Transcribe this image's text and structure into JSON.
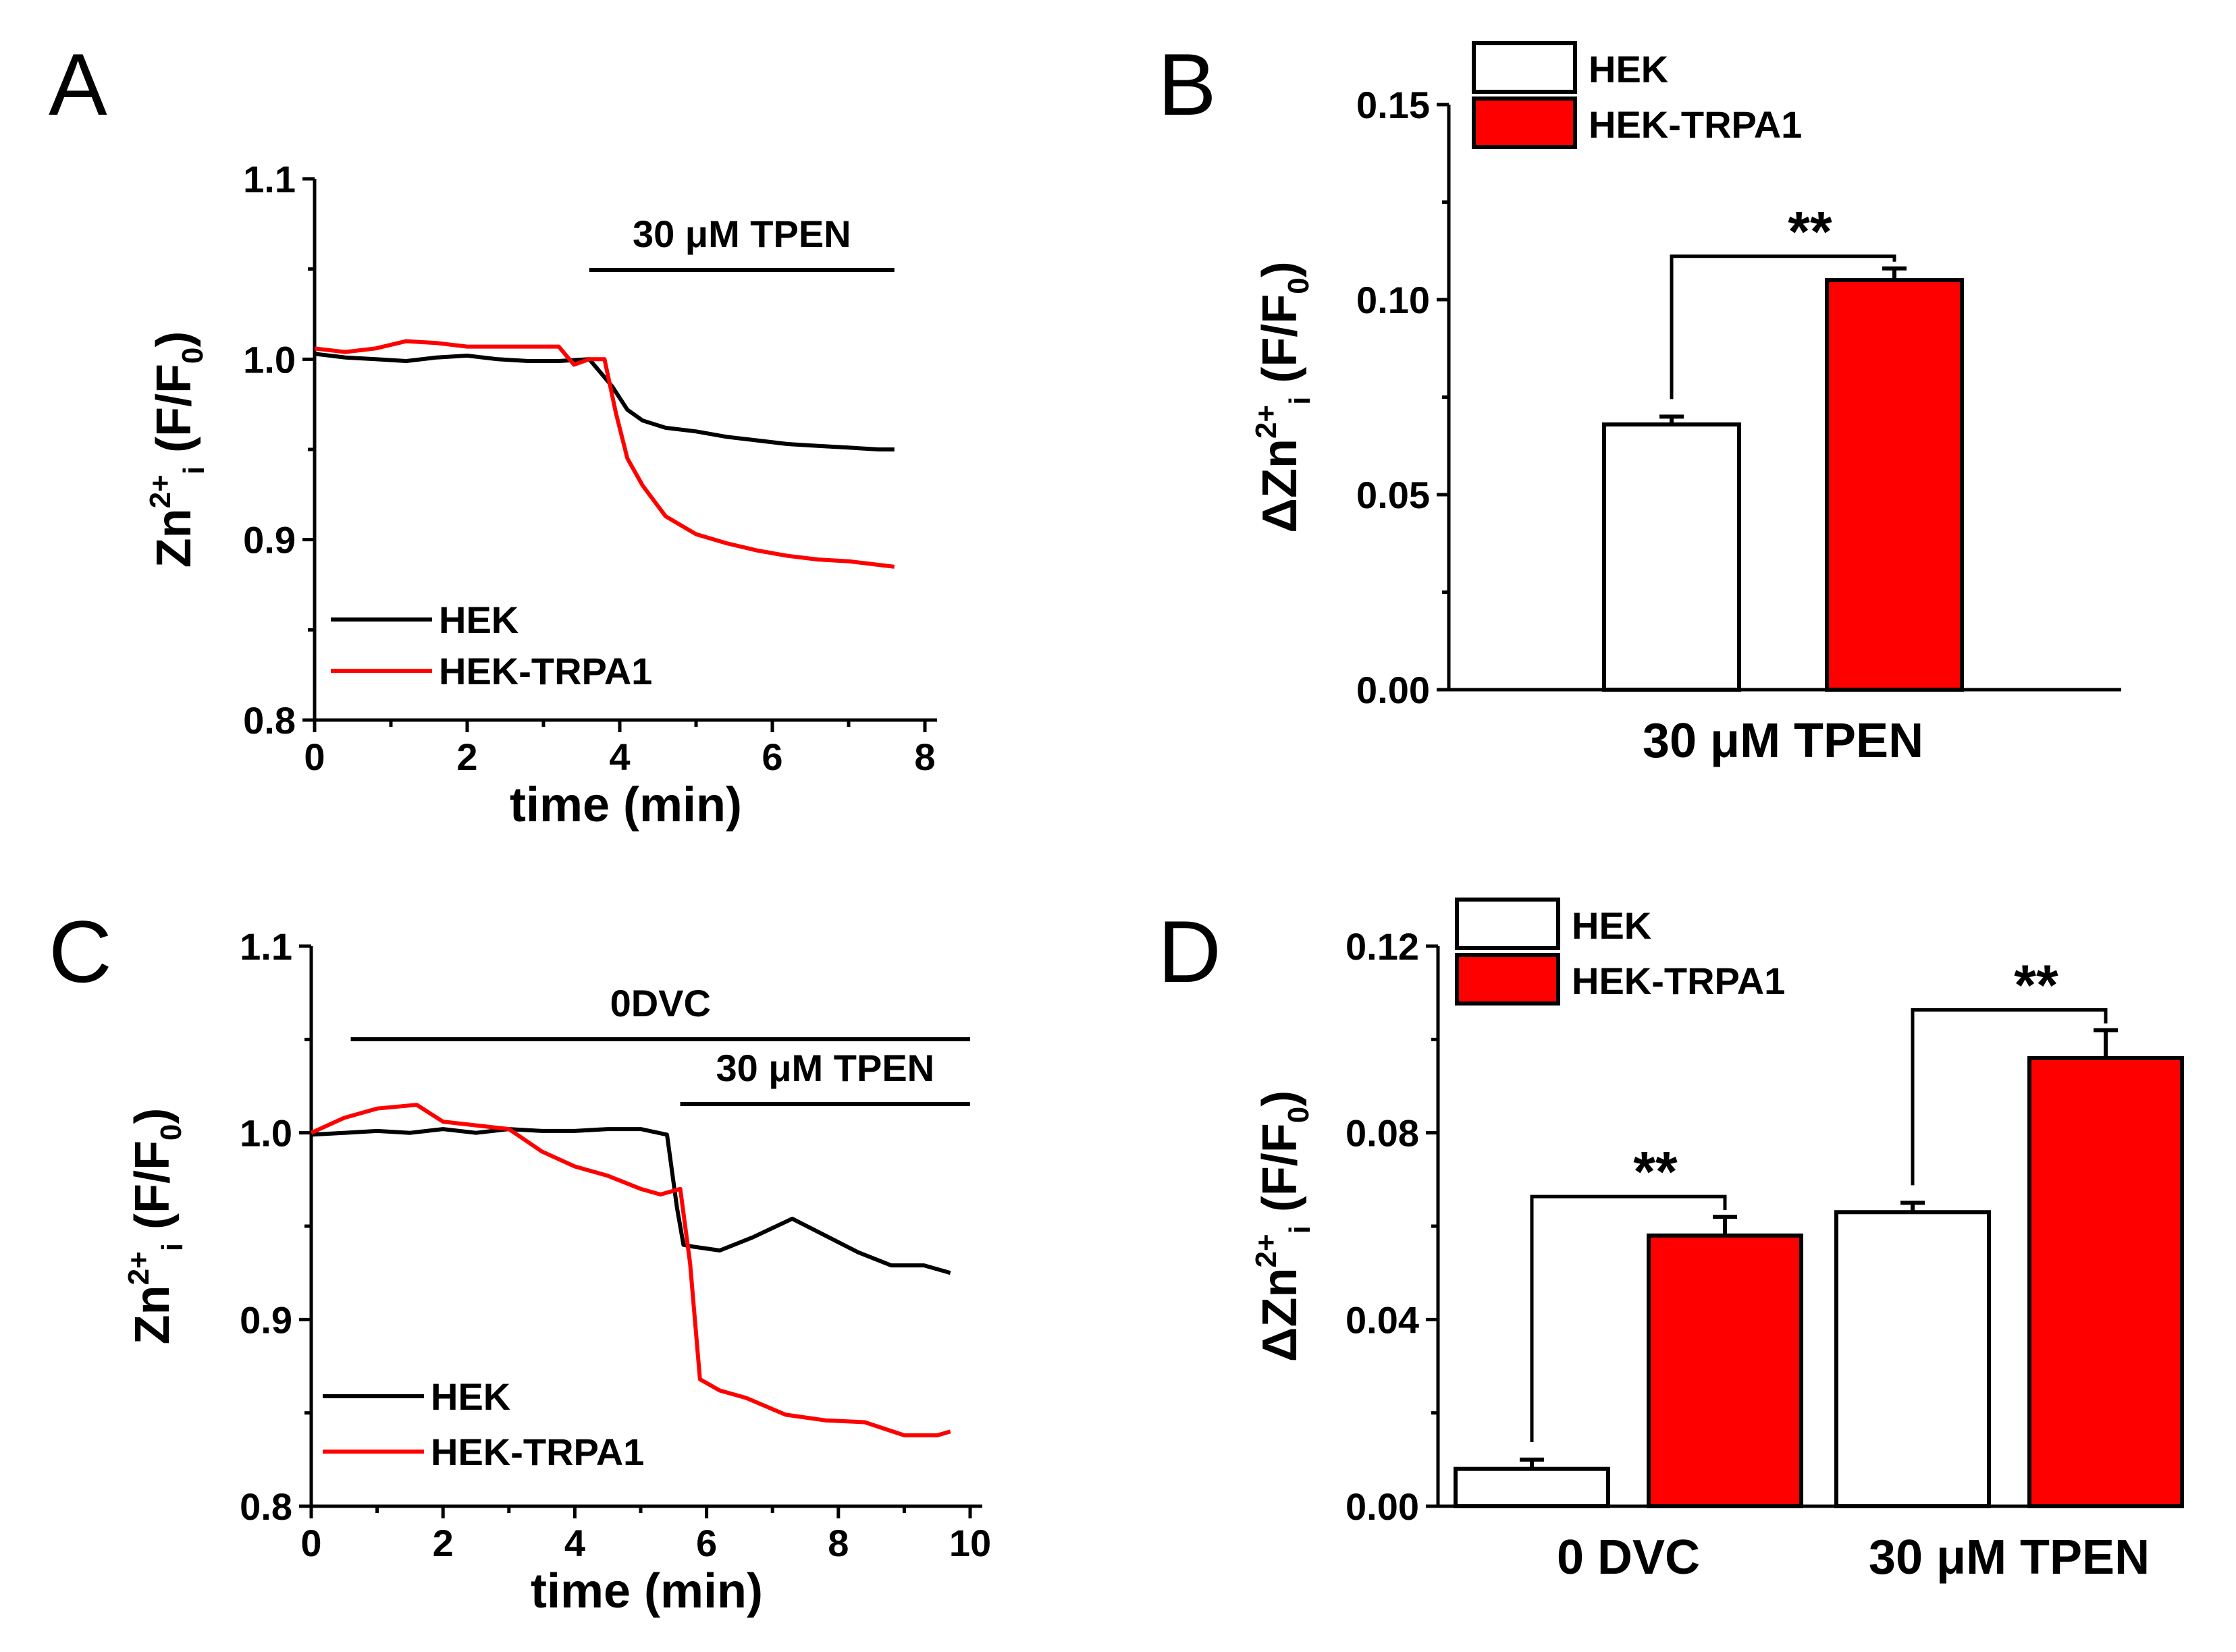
{
  "colors": {
    "hek": "#000000",
    "trpa1": "#ff0000",
    "hek_bar": "#ffffff",
    "trpa1_bar": "#ff0000"
  },
  "chart_data": [
    {
      "panel": "A",
      "type": "line",
      "xlabel": "time (min)",
      "ylabel_parts": {
        "main": "Zn",
        "sup": "2+",
        "sub": "i",
        "rest": " (F/F",
        "sub2": "0",
        "close": ")"
      },
      "xlim": [
        0,
        8
      ],
      "ylim": [
        0.8,
        1.1
      ],
      "xticks": [
        0,
        2,
        4,
        6,
        8
      ],
      "xtick_labels": [
        "0",
        "2",
        "4",
        "6",
        "8"
      ],
      "yticks": [
        0.8,
        0.9,
        1.0,
        1.1
      ],
      "ytick_labels": [
        "0.8",
        "0.9",
        "1.0",
        "1.1"
      ],
      "annotations": [
        {
          "text": "30 μM TPEN",
          "x_start": 3.6,
          "x_end": 7.6
        }
      ],
      "legend": [
        "HEK",
        "HEK-TRPA1"
      ],
      "series": [
        {
          "name": "HEK",
          "color": "#000000",
          "x": [
            0,
            0.4,
            0.8,
            1.2,
            1.6,
            2.0,
            2.4,
            2.8,
            3.2,
            3.6,
            3.9,
            4.1,
            4.3,
            4.6,
            5.0,
            5.4,
            5.8,
            6.2,
            6.6,
            7.0,
            7.4,
            7.6
          ],
          "y": [
            1.003,
            1.001,
            1.0,
            0.999,
            1.001,
            1.002,
            1.0,
            0.999,
            0.999,
            1.0,
            0.985,
            0.972,
            0.966,
            0.962,
            0.96,
            0.957,
            0.955,
            0.953,
            0.952,
            0.951,
            0.95,
            0.95
          ]
        },
        {
          "name": "HEK-TRPA1",
          "color": "#ff0000",
          "x": [
            0,
            0.4,
            0.8,
            1.2,
            1.6,
            2.0,
            2.4,
            2.8,
            3.2,
            3.4,
            3.6,
            3.8,
            3.95,
            4.1,
            4.3,
            4.6,
            5.0,
            5.4,
            5.8,
            6.2,
            6.6,
            7.0,
            7.4,
            7.6
          ],
          "y": [
            1.006,
            1.004,
            1.006,
            1.01,
            1.009,
            1.007,
            1.007,
            1.007,
            1.007,
            0.997,
            1.0,
            1.0,
            0.97,
            0.945,
            0.93,
            0.913,
            0.903,
            0.898,
            0.894,
            0.891,
            0.889,
            0.888,
            0.886,
            0.885
          ]
        }
      ]
    },
    {
      "panel": "B",
      "type": "bar",
      "categories": [
        "30 μM TPEN"
      ],
      "ylabel_parts": {
        "main": "ΔZn",
        "sup": "2+",
        "sub": "i",
        "rest": " (F/F",
        "sub2": "0",
        "close": ")"
      },
      "ylim": [
        0,
        0.15
      ],
      "yticks": [
        0,
        0.05,
        0.1,
        0.15
      ],
      "ytick_labels": [
        "0.00",
        "0.05",
        "0.10",
        "0.15"
      ],
      "legend": [
        "HEK",
        "HEK-TRPA1"
      ],
      "series": [
        {
          "name": "HEK",
          "values": [
            0.068
          ],
          "errors": [
            0.002
          ]
        },
        {
          "name": "HEK-TRPA1",
          "values": [
            0.105
          ],
          "errors": [
            0.003
          ]
        }
      ],
      "significance": [
        {
          "category": "30 μM TPEN",
          "label": "**"
        }
      ]
    },
    {
      "panel": "C",
      "type": "line",
      "xlabel": "time (min)",
      "ylabel_parts": {
        "main": "Zn",
        "sup": "2+",
        "sub": "i",
        "rest": " (F/F",
        "sub2": "0",
        "close": ")"
      },
      "xlim": [
        0,
        10
      ],
      "ylim": [
        0.8,
        1.1
      ],
      "xticks": [
        0,
        2,
        4,
        6,
        8,
        10
      ],
      "xtick_labels": [
        "0",
        "2",
        "4",
        "6",
        "8",
        "10"
      ],
      "yticks": [
        0.8,
        0.9,
        1.0,
        1.1
      ],
      "ytick_labels": [
        "0.8",
        "0.9",
        "1.0",
        "1.1"
      ],
      "annotations": [
        {
          "text": "0DVC",
          "x_start": 0.6,
          "x_end": 10.0
        },
        {
          "text": "30 μM TPEN",
          "x_start": 5.6,
          "x_end": 10.0
        }
      ],
      "legend": [
        "HEK",
        "HEK-TRPA1"
      ],
      "series": [
        {
          "name": "HEK",
          "color": "#000000",
          "x": [
            0,
            0.5,
            1.0,
            1.5,
            2.0,
            2.5,
            3.0,
            3.5,
            4.0,
            4.5,
            5.0,
            5.4,
            5.55,
            5.65,
            5.8,
            6.2,
            6.7,
            7.3,
            7.8,
            8.3,
            8.8,
            9.3,
            9.7
          ],
          "y": [
            0.999,
            1.0,
            1.001,
            1.0,
            1.002,
            1.0,
            1.002,
            1.001,
            1.001,
            1.002,
            1.002,
            0.999,
            0.96,
            0.94,
            0.939,
            0.937,
            0.944,
            0.954,
            0.945,
            0.936,
            0.929,
            0.929,
            0.925
          ]
        },
        {
          "name": "HEK-TRPA1",
          "color": "#ff0000",
          "x": [
            0,
            0.5,
            1.0,
            1.6,
            2.0,
            2.5,
            3.0,
            3.5,
            4.0,
            4.5,
            5.0,
            5.3,
            5.6,
            5.75,
            5.9,
            6.2,
            6.6,
            7.2,
            7.8,
            8.4,
            9.0,
            9.5,
            9.7
          ],
          "y": [
            1.0,
            1.008,
            1.013,
            1.015,
            1.006,
            1.004,
            1.002,
            0.99,
            0.982,
            0.977,
            0.97,
            0.967,
            0.97,
            0.93,
            0.868,
            0.862,
            0.858,
            0.849,
            0.846,
            0.845,
            0.838,
            0.838,
            0.84
          ]
        }
      ]
    },
    {
      "panel": "D",
      "type": "bar",
      "categories": [
        "0 DVC",
        "30 μM TPEN"
      ],
      "ylabel_parts": {
        "main": "ΔZn",
        "sup": "2+",
        "sub": "i",
        "rest": " (F/F",
        "sub2": "0",
        "close": ")"
      },
      "ylim": [
        0,
        0.12
      ],
      "yticks": [
        0,
        0.04,
        0.08,
        0.12
      ],
      "ytick_labels": [
        "0.00",
        "0.04",
        "0.08",
        "0.12"
      ],
      "legend": [
        "HEK",
        "HEK-TRPA1"
      ],
      "series": [
        {
          "name": "HEK",
          "values": [
            0.008,
            0.063
          ],
          "errors": [
            0.002,
            0.002
          ]
        },
        {
          "name": "HEK-TRPA1",
          "values": [
            0.058,
            0.096
          ],
          "errors": [
            0.004,
            0.006
          ]
        }
      ],
      "significance": [
        {
          "category": "0 DVC",
          "label": "**"
        },
        {
          "category": "30 μM TPEN",
          "label": "**"
        }
      ]
    }
  ]
}
